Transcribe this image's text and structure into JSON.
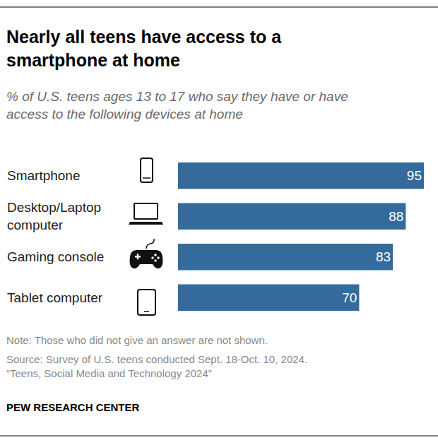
{
  "chart_data": {
    "type": "bar",
    "orientation": "horizontal",
    "title": "Nearly all teens have access to a\nsmartphone at home",
    "subtitle": "% of U.S. teens ages 13 to 17 who say they have or have\naccess to the following devices at home",
    "categories": [
      "Smartphone",
      "Desktop/Laptop\ncomputer",
      "Gaming console",
      "Tablet computer"
    ],
    "values": [
      95,
      88,
      83,
      70
    ],
    "color": "#346b9c",
    "xlim": [
      0,
      95
    ],
    "data_labels": true,
    "tick_labels": false,
    "grid": false,
    "note": "Note: Those who did not give an answer are not shown.",
    "source": "Source: Survey of U.S. teens conducted Sept. 18-Oct. 10, 2024.\n“Teens, Social Media and Technology 2024”",
    "credit": "PEW RESEARCH CENTER"
  }
}
